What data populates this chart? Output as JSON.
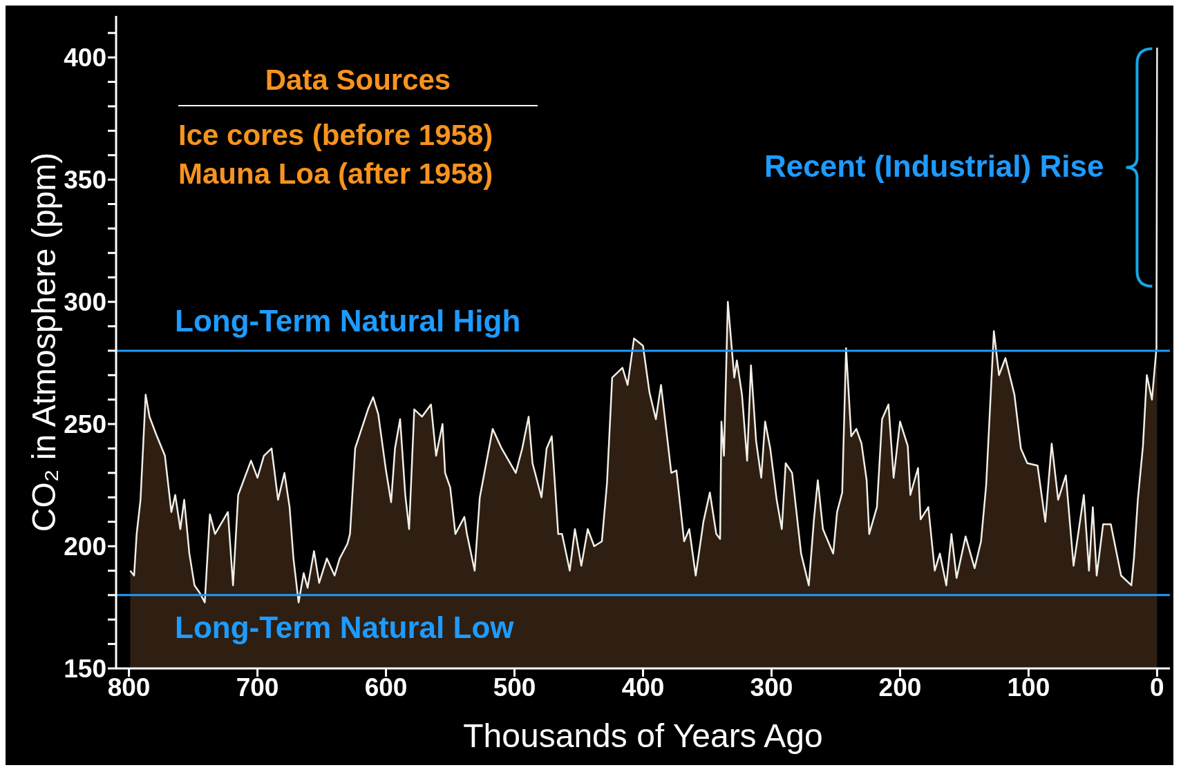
{
  "chart_data": {
    "type": "area",
    "xlabel": "Thousands of Years Ago",
    "ylabel": "CO₂ in Atmosphere (ppm)",
    "xlim": [
      810,
      -10
    ],
    "xticks": [
      800,
      700,
      600,
      500,
      400,
      300,
      200,
      100,
      0
    ],
    "ylim": [
      150,
      417
    ],
    "yticks": [
      150,
      {
        "value": 160,
        "label": null
      },
      {
        "value": 170,
        "label": null
      },
      {
        "value": 180,
        "label": null
      },
      {
        "value": 190,
        "label": null
      },
      200,
      {
        "value": 210,
        "label": null
      },
      {
        "value": 220,
        "label": null
      },
      {
        "value": 230,
        "label": null
      },
      {
        "value": 240,
        "label": null
      },
      250,
      {
        "value": 260,
        "label": null
      },
      {
        "value": 270,
        "label": null
      },
      {
        "value": 280,
        "label": null
      },
      {
        "value": 290,
        "label": null
      },
      300,
      {
        "value": 310,
        "label": null
      },
      {
        "value": 320,
        "label": null
      },
      {
        "value": 330,
        "label": null
      },
      {
        "value": 340,
        "label": null
      },
      350,
      {
        "value": 360,
        "label": null
      },
      {
        "value": 370,
        "label": null
      },
      {
        "value": 380,
        "label": null
      },
      {
        "value": 390,
        "label": null
      },
      400,
      {
        "value": 410,
        "label": null
      }
    ],
    "x": [
      799,
      796,
      794,
      791,
      787,
      784,
      779,
      772,
      767,
      764,
      760,
      757,
      753,
      749,
      745,
      741,
      737,
      733,
      723,
      719,
      715,
      705,
      700,
      695,
      689,
      684,
      679,
      675,
      672,
      668,
      664,
      661,
      656,
      652,
      646,
      640,
      636,
      630,
      628,
      624,
      614,
      610,
      606,
      600,
      596,
      593,
      589,
      585,
      582,
      578,
      572,
      565,
      561,
      556,
      554,
      550,
      546,
      539,
      537,
      531,
      527,
      517,
      510,
      499,
      494,
      489,
      486,
      479,
      475,
      471,
      466,
      463,
      457,
      453,
      448,
      443,
      438,
      432,
      428,
      424,
      416,
      412,
      407,
      400,
      395,
      390,
      386,
      382,
      378,
      374,
      368,
      364,
      359,
      353,
      348,
      343,
      340,
      339,
      337,
      334,
      329,
      327,
      323,
      319,
      316,
      312,
      308,
      305,
      301,
      296,
      292,
      289,
      284,
      277,
      271,
      267,
      264,
      260,
      252,
      249,
      245,
      242,
      238,
      234,
      230,
      226,
      224,
      218,
      214,
      209,
      205,
      200,
      194,
      192,
      186,
      184,
      178,
      173,
      169,
      164,
      160,
      156,
      149,
      142,
      137,
      133,
      127,
      123,
      118,
      111,
      106,
      101,
      93,
      87,
      82,
      77,
      71,
      65,
      57,
      53,
      50,
      47,
      42,
      36,
      28,
      20,
      18,
      15,
      11,
      8,
      4,
      0.5,
      0
    ],
    "series": [
      {
        "color": "#2e1f12",
        "values": [
          190,
          188,
          205,
          219,
          262,
          253,
          246,
          237,
          214,
          221,
          207,
          219,
          197,
          184,
          181,
          177,
          213,
          205,
          214,
          184,
          221,
          235,
          228,
          237,
          240,
          219,
          230,
          216,
          195,
          177,
          189,
          183,
          198,
          185,
          195,
          188,
          195,
          201,
          205,
          240,
          256,
          261,
          254,
          231,
          218,
          240,
          252,
          221,
          207,
          256,
          253,
          258,
          237,
          250,
          230,
          224,
          205,
          212,
          205,
          190,
          220,
          248,
          240,
          230,
          240,
          253,
          234,
          220,
          240,
          245,
          205,
          205,
          190,
          207,
          192,
          207,
          200,
          202,
          226,
          269,
          273,
          266,
          285,
          282,
          263,
          252,
          266,
          248,
          230,
          231,
          202,
          207,
          188,
          210,
          222,
          205,
          203,
          251,
          237,
          300,
          269,
          276,
          262,
          235,
          274,
          243,
          228,
          251,
          240,
          219,
          207,
          234,
          230,
          197,
          184,
          211,
          227,
          207,
          197,
          214,
          222,
          281,
          245,
          248,
          242,
          227,
          205,
          216,
          252,
          258,
          228,
          251,
          241,
          221,
          232,
          211,
          216,
          190,
          197,
          184,
          205,
          187,
          204,
          191,
          202,
          225,
          288,
          270,
          277,
          262,
          240,
          234,
          233,
          210,
          242,
          219,
          229,
          192,
          221,
          190,
          216,
          188,
          209,
          209,
          188,
          184,
          195,
          219,
          241,
          270,
          260,
          281,
          404
        ]
      }
    ],
    "ref_lines": [
      {
        "axis": "y",
        "value": 280,
        "label": "Long-Term Natural High",
        "color": "#1e9bff"
      },
      {
        "axis": "y",
        "value": 180,
        "label": "Long-Term Natural Low",
        "color": "#1e9bff"
      }
    ],
    "annotations": [
      "Data Sources",
      "Ice cores (before 1958)",
      "Mauna Loa (after 1958)",
      {
        "text": "Recent (Industrial) Rise",
        "x": 0,
        "y": 355
      }
    ]
  }
}
